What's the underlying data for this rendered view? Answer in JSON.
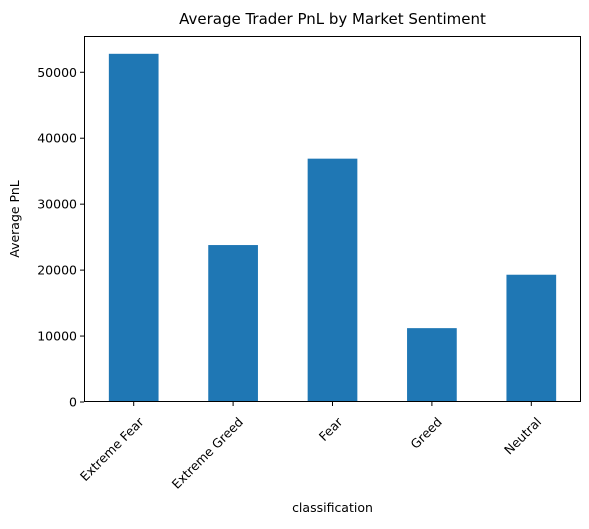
{
  "chart_data": {
    "type": "bar",
    "title": "Average Trader PnL by Market Sentiment",
    "xlabel": "classification",
    "ylabel": "Average PnL",
    "categories": [
      "Extreme Fear",
      "Extreme Greed",
      "Fear",
      "Greed",
      "Neutral"
    ],
    "values": [
      52800,
      23800,
      36900,
      11200,
      19300
    ],
    "ylim": [
      0,
      55500
    ],
    "yticks": [
      0,
      10000,
      20000,
      30000,
      40000,
      50000
    ],
    "bar_color": "#1f77b4",
    "grid": false,
    "legend": false
  }
}
